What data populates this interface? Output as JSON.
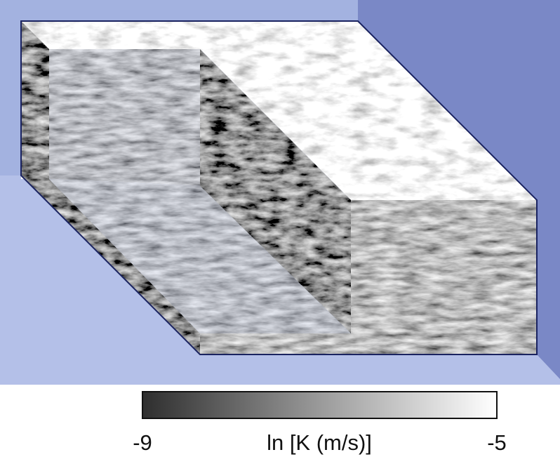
{
  "colorbar": {
    "label": "ln [K (m/s)]",
    "ticks": [
      -9,
      -5
    ]
  }
}
